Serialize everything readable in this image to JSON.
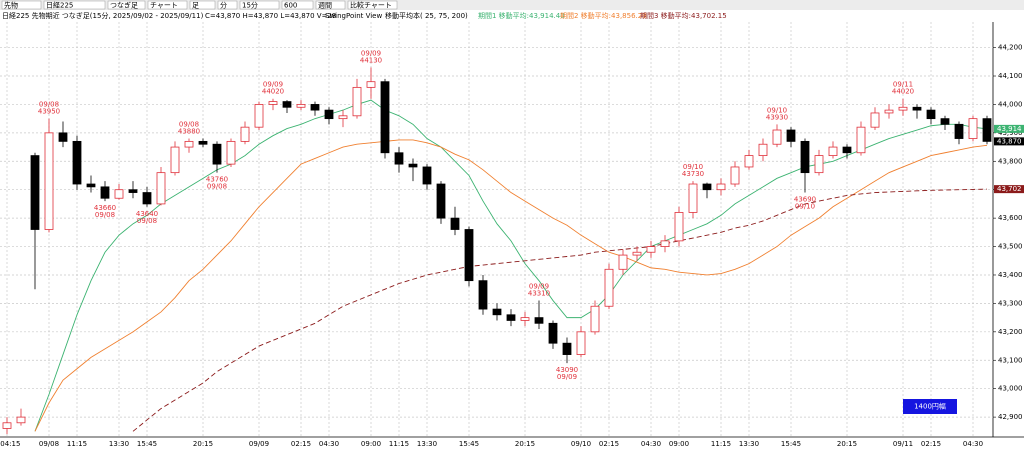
{
  "toolbar": [
    "先物",
    "日経225",
    "つなぎ足",
    "チャート",
    "足",
    "分",
    "15分",
    "600",
    "週間",
    "比較チャート"
  ],
  "chart_data": {
    "type": "candlestick",
    "header": {
      "symbol": "日経225 先物期近 つなぎ足(15分, 2025/09/02 - 2025/09/11)",
      "ohlcv": "C=43,870 H=43,870 L=43,870 V=28",
      "view": "SwingPoint View",
      "ma_periods": "移動平均本( 25, 75, 200)"
    },
    "up_color": "#e0303a",
    "down_color": "#000000",
    "categories": [
      "8 04:15",
      null,
      null,
      "09/08",
      null,
      "11:15",
      null,
      null,
      "13:30",
      null,
      "15:45",
      null,
      null,
      null,
      "20:15",
      null,
      null,
      null,
      "09/09",
      null,
      null,
      "02:15",
      null,
      "04:30",
      null,
      null,
      "09:00",
      null,
      "11:15",
      null,
      "13:30",
      null,
      null,
      "15:45",
      null,
      null,
      null,
      "20:15",
      null,
      null,
      null,
      "09/10",
      null,
      "02:15",
      null,
      null,
      "04:30",
      null,
      "09:00",
      null,
      null,
      "11:15",
      null,
      "13:30",
      null,
      null,
      "15:45",
      null,
      null,
      null,
      "20:15",
      null,
      null,
      null,
      "09/11",
      null,
      "02:15",
      null,
      null,
      "04:30",
      null
    ],
    "candles": [
      [
        42860,
        42900,
        42840,
        42880
      ],
      [
        42880,
        42930,
        42870,
        42900
      ],
      [
        43820,
        43830,
        43350,
        43560
      ],
      [
        43560,
        43950,
        43550,
        43900
      ],
      [
        43900,
        43940,
        43850,
        43870
      ],
      [
        43870,
        43890,
        43700,
        43720
      ],
      [
        43720,
        43750,
        43690,
        43710
      ],
      [
        43710,
        43730,
        43660,
        43670
      ],
      [
        43670,
        43720,
        43665,
        43700
      ],
      [
        43700,
        43730,
        43670,
        43690
      ],
      [
        43690,
        43710,
        43640,
        43650
      ],
      [
        43650,
        43780,
        43645,
        43760
      ],
      [
        43760,
        43870,
        43750,
        43850
      ],
      [
        43850,
        43880,
        43830,
        43870
      ],
      [
        43870,
        43880,
        43850,
        43860
      ],
      [
        43860,
        43870,
        43760,
        43790
      ],
      [
        43790,
        43880,
        43780,
        43870
      ],
      [
        43870,
        43940,
        43860,
        43920
      ],
      [
        43920,
        44010,
        43910,
        44000
      ],
      [
        44000,
        44020,
        43980,
        44010
      ],
      [
        44010,
        44015,
        43970,
        43990
      ],
      [
        43990,
        44015,
        43980,
        44000
      ],
      [
        44000,
        44010,
        43960,
        43980
      ],
      [
        43980,
        43990,
        43930,
        43950
      ],
      [
        43950,
        43980,
        43920,
        43960
      ],
      [
        43960,
        44090,
        43950,
        44060
      ],
      [
        44060,
        44130,
        44020,
        44080
      ],
      [
        44080,
        44090,
        43810,
        43830
      ],
      [
        43830,
        43850,
        43760,
        43790
      ],
      [
        43790,
        43810,
        43730,
        43780
      ],
      [
        43780,
        43790,
        43700,
        43720
      ],
      [
        43720,
        43730,
        43580,
        43600
      ],
      [
        43600,
        43640,
        43540,
        43560
      ],
      [
        43560,
        43570,
        43360,
        43380
      ],
      [
        43380,
        43400,
        43260,
        43280
      ],
      [
        43280,
        43300,
        43240,
        43260
      ],
      [
        43260,
        43280,
        43220,
        43240
      ],
      [
        43240,
        43270,
        43220,
        43250
      ],
      [
        43250,
        43310,
        43210,
        43230
      ],
      [
        43230,
        43240,
        43140,
        43160
      ],
      [
        43160,
        43180,
        43090,
        43120
      ],
      [
        43120,
        43220,
        43110,
        43200
      ],
      [
        43200,
        43310,
        43190,
        43290
      ],
      [
        43290,
        43440,
        43280,
        43420
      ],
      [
        43420,
        43490,
        43400,
        43470
      ],
      [
        43470,
        43500,
        43450,
        43480
      ],
      [
        43480,
        43520,
        43460,
        43500
      ],
      [
        43500,
        43540,
        43480,
        43520
      ],
      [
        43520,
        43640,
        43500,
        43620
      ],
      [
        43620,
        43730,
        43600,
        43720
      ],
      [
        43720,
        43725,
        43670,
        43700
      ],
      [
        43700,
        43740,
        43680,
        43720
      ],
      [
        43720,
        43800,
        43710,
        43780
      ],
      [
        43780,
        43840,
        43770,
        43820
      ],
      [
        43820,
        43880,
        43800,
        43860
      ],
      [
        43860,
        43930,
        43850,
        43910
      ],
      [
        43910,
        43920,
        43850,
        43870
      ],
      [
        43870,
        43880,
        43690,
        43760
      ],
      [
        43760,
        43840,
        43750,
        43820
      ],
      [
        43820,
        43870,
        43810,
        43850
      ],
      [
        43850,
        43860,
        43810,
        43830
      ],
      [
        43830,
        43940,
        43820,
        43920
      ],
      [
        43920,
        43990,
        43910,
        43970
      ],
      [
        43970,
        44000,
        43950,
        43980
      ],
      [
        43980,
        44020,
        43960,
        43990
      ],
      [
        43990,
        44000,
        43950,
        43980
      ],
      [
        43980,
        43990,
        43930,
        43950
      ],
      [
        43950,
        43960,
        43910,
        43930
      ],
      [
        43930,
        43940,
        43860,
        43880
      ],
      [
        43880,
        43960,
        43870,
        43950
      ],
      [
        43950,
        43960,
        43860,
        43870
      ]
    ],
    "swing_points": [
      null,
      null,
      null,
      {
        "date": "09/08",
        "price": 43950,
        "side": "high"
      },
      null,
      null,
      null,
      {
        "date": "09/08",
        "price": 43660,
        "side": "low"
      },
      null,
      null,
      {
        "date": "09/08",
        "price": 43640,
        "side": "low"
      },
      null,
      null,
      {
        "date": "09/08",
        "price": 43880,
        "side": "high"
      },
      null,
      {
        "date": "09/08",
        "price": 43760,
        "side": "low"
      },
      null,
      null,
      null,
      {
        "date": "09/09",
        "price": 44020,
        "side": "high"
      },
      null,
      null,
      null,
      null,
      null,
      null,
      {
        "date": "09/09",
        "price": 44130,
        "side": "high"
      },
      null,
      null,
      null,
      null,
      null,
      null,
      null,
      null,
      null,
      null,
      null,
      {
        "date": "09/09",
        "price": 43310,
        "side": "high"
      },
      null,
      {
        "date": "09/09",
        "price": 43090,
        "side": "low"
      },
      null,
      null,
      null,
      null,
      null,
      null,
      null,
      null,
      {
        "date": "09/10",
        "price": 43730,
        "side": "high"
      },
      null,
      null,
      null,
      null,
      null,
      {
        "date": "09/10",
        "price": 43930,
        "side": "high"
      },
      null,
      {
        "date": "09/10",
        "price": 43690,
        "side": "low"
      },
      null,
      null,
      null,
      null,
      null,
      null,
      {
        "date": "09/11",
        "price": 44020,
        "side": "high"
      },
      null,
      null,
      null,
      null,
      null,
      null
    ],
    "series": [
      {
        "name": "期間1 移動平均:43,914.40",
        "color": "#3cb371",
        "dashed": false,
        "values": [
          null,
          null,
          42850,
          42980,
          43120,
          43260,
          43380,
          43480,
          43540,
          43580,
          43610,
          43650,
          43680,
          43710,
          43740,
          43770,
          43790,
          43820,
          43860,
          43890,
          43915,
          43930,
          43950,
          43965,
          43980,
          44000,
          44015,
          43980,
          43960,
          43930,
          43880,
          43850,
          43800,
          43750,
          43660,
          43580,
          43520,
          43440,
          43380,
          43310,
          43250,
          43250,
          43280,
          43330,
          43400,
          43450,
          43500,
          43520,
          43540,
          43560,
          43580,
          43610,
          43650,
          43680,
          43710,
          43740,
          43760,
          43780,
          43790,
          43800,
          43820,
          43840,
          43860,
          43880,
          43895,
          43910,
          43925,
          43930,
          43930,
          43920,
          43914
        ]
      },
      {
        "name": "期間2 移動平均:43,856.29",
        "color": "#f08030",
        "dashed": false,
        "values": [
          null,
          null,
          42850,
          42950,
          43030,
          43070,
          43110,
          43140,
          43170,
          43200,
          43235,
          43270,
          43320,
          43380,
          43420,
          43470,
          43520,
          43580,
          43640,
          43690,
          43740,
          43790,
          43810,
          43830,
          43850,
          43860,
          43865,
          43870,
          43875,
          43875,
          43865,
          43850,
          43825,
          43805,
          43770,
          43730,
          43690,
          43660,
          43630,
          43600,
          43575,
          43540,
          43510,
          43480,
          43465,
          43445,
          43425,
          43420,
          43410,
          43405,
          43400,
          43405,
          43420,
          43440,
          43470,
          43500,
          43540,
          43570,
          43600,
          43640,
          43670,
          43700,
          43730,
          43760,
          43780,
          43800,
          43820,
          43830,
          43840,
          43850,
          43856
        ]
      },
      {
        "name": "期間3 移動平均:43,702.15",
        "color": "#8b1a1a",
        "dashed": true,
        "values": [
          null,
          null,
          null,
          null,
          null,
          null,
          null,
          null,
          null,
          42850,
          42890,
          42930,
          42960,
          42990,
          43020,
          43060,
          43090,
          43120,
          43150,
          43170,
          43190,
          43210,
          43230,
          43260,
          43290,
          43310,
          43330,
          43350,
          43370,
          43385,
          43400,
          43410,
          43420,
          43430,
          43435,
          43440,
          43445,
          43450,
          43455,
          43460,
          43465,
          43470,
          43480,
          43485,
          43490,
          43495,
          43500,
          43510,
          43520,
          43530,
          43540,
          43550,
          43565,
          43575,
          43590,
          43610,
          43630,
          43650,
          43660,
          43670,
          43680,
          43685,
          43690,
          43692,
          43694,
          43696,
          43698,
          43699,
          43700,
          43701,
          43702
        ]
      }
    ],
    "price_tags": [
      {
        "value": 43914,
        "label": "43,914",
        "color": "#3cb371"
      },
      {
        "value": 43870,
        "label": "43,870",
        "color": "#000000"
      },
      {
        "value": 43702,
        "label": "43,702",
        "color": "#8b1a1a"
      }
    ],
    "ylim": [
      42830,
      44290
    ],
    "yticks": [
      {
        "value": 42900,
        "label": "42,900"
      },
      {
        "value": 43000,
        "label": "43,000"
      },
      {
        "value": 43100,
        "label": "43,100"
      },
      {
        "value": 43200,
        "label": "43,200"
      },
      {
        "value": 43300,
        "label": "43,300"
      },
      {
        "value": 43400,
        "label": "43,400"
      },
      {
        "value": 43500,
        "label": "43,500"
      },
      {
        "value": 43600,
        "label": "43,600"
      },
      {
        "value": 43700,
        "label": "43,700"
      },
      {
        "value": 43800,
        "label": "43,800"
      },
      {
        "value": 43900,
        "label": "43,900"
      },
      {
        "value": 44000,
        "label": "44,000"
      },
      {
        "value": 44100,
        "label": "44,100"
      },
      {
        "value": 44200,
        "label": "44,200"
      }
    ],
    "grid": true,
    "badge": "1400円幅"
  }
}
